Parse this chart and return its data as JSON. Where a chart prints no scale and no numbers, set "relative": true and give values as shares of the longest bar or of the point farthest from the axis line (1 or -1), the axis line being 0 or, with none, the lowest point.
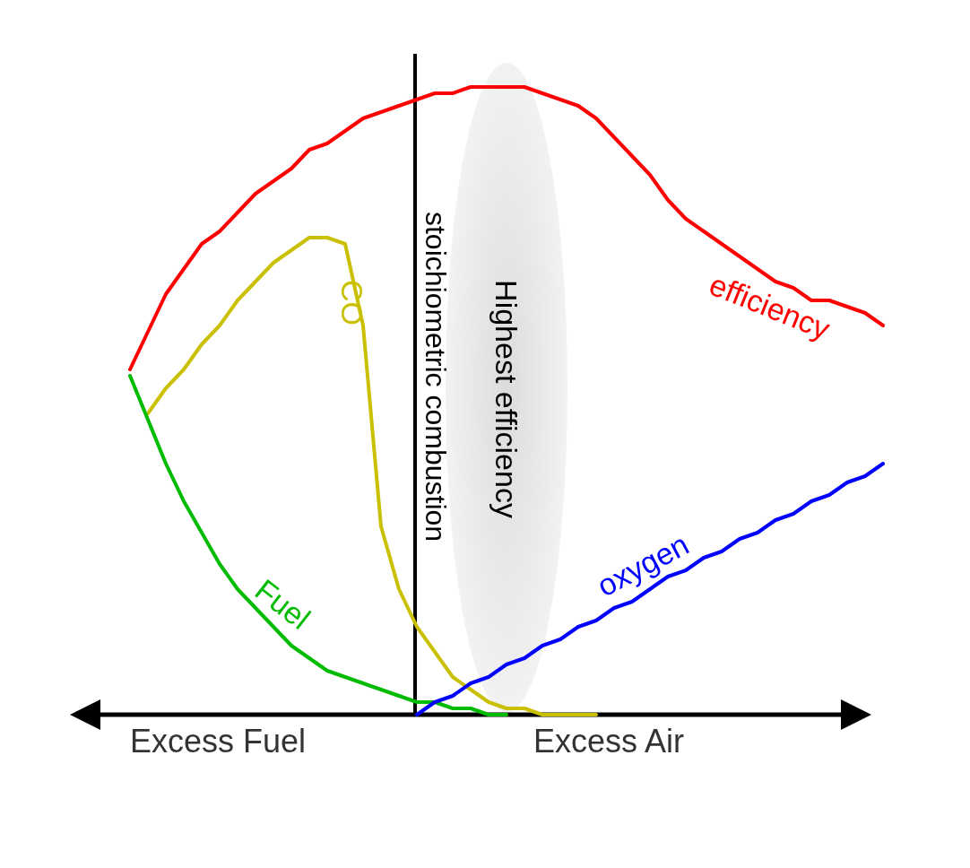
{
  "chart_data": {
    "type": "line",
    "relative": true,
    "line_style": "solid",
    "grid": false,
    "legend": false,
    "categories": [
      null,
      null,
      null,
      null,
      null,
      null,
      null,
      null,
      null,
      null,
      null,
      null,
      null,
      null,
      null,
      null,
      null,
      null,
      null,
      null,
      null,
      null,
      null,
      null,
      null,
      null,
      null,
      null,
      null,
      null,
      null,
      null,
      null,
      null,
      null,
      null,
      null,
      null,
      null,
      null,
      null,
      null,
      null
    ],
    "series": [
      {
        "name": "efficiency",
        "color": "#ff0000",
        "values": [
          0.55,
          0.61,
          0.67,
          0.71,
          0.75,
          0.77,
          0.8,
          0.83,
          0.85,
          0.87,
          0.9,
          0.91,
          0.93,
          0.95,
          0.96,
          0.97,
          0.98,
          0.99,
          0.99,
          1.0,
          1.0,
          1.0,
          1.0,
          0.99,
          0.98,
          0.97,
          0.95,
          0.92,
          0.89,
          0.86,
          0.82,
          0.79,
          0.77,
          0.75,
          0.73,
          0.71,
          0.69,
          0.68,
          0.66,
          0.66,
          0.65,
          0.64,
          0.62
        ]
      },
      {
        "name": "CO",
        "color": "#c8c000",
        "values": [
          null,
          0.48,
          0.52,
          0.55,
          0.59,
          0.62,
          0.66,
          0.69,
          0.72,
          0.74,
          0.76,
          0.76,
          0.75,
          0.62,
          0.3,
          0.2,
          0.14,
          0.1,
          0.06,
          0.04,
          0.02,
          0.01,
          0.01,
          0.0,
          0.0,
          0.0,
          0.0,
          null,
          null,
          null,
          null,
          null,
          null,
          null,
          null,
          null,
          null,
          null,
          null,
          null,
          null,
          null,
          null
        ]
      },
      {
        "name": "Fuel",
        "color": "#00bb00",
        "values": [
          0.54,
          0.47,
          0.4,
          0.34,
          0.29,
          0.24,
          0.2,
          0.17,
          0.14,
          0.11,
          0.09,
          0.07,
          0.06,
          0.05,
          0.04,
          0.03,
          0.02,
          0.02,
          0.01,
          0.01,
          0.0,
          0.0,
          null,
          null,
          null,
          null,
          null,
          null,
          null,
          null,
          null,
          null,
          null,
          null,
          null,
          null,
          null,
          null,
          null,
          null,
          null,
          null,
          null
        ]
      },
      {
        "name": "oxygen",
        "color": "#0000ff",
        "values": [
          null,
          null,
          null,
          null,
          null,
          null,
          null,
          null,
          null,
          null,
          null,
          null,
          null,
          null,
          null,
          null,
          0,
          0.02,
          0.03,
          0.05,
          0.06,
          0.08,
          0.09,
          0.11,
          0.12,
          0.14,
          0.15,
          0.17,
          0.18,
          0.2,
          0.22,
          0.23,
          0.25,
          0.26,
          0.28,
          0.29,
          0.31,
          0.32,
          0.34,
          0.35,
          0.37,
          0.38,
          0.4
        ]
      }
    ],
    "annotations": [
      "Excess Fuel",
      "Excess Air",
      "stoichiometric combustion",
      "Highest efficiency"
    ]
  }
}
